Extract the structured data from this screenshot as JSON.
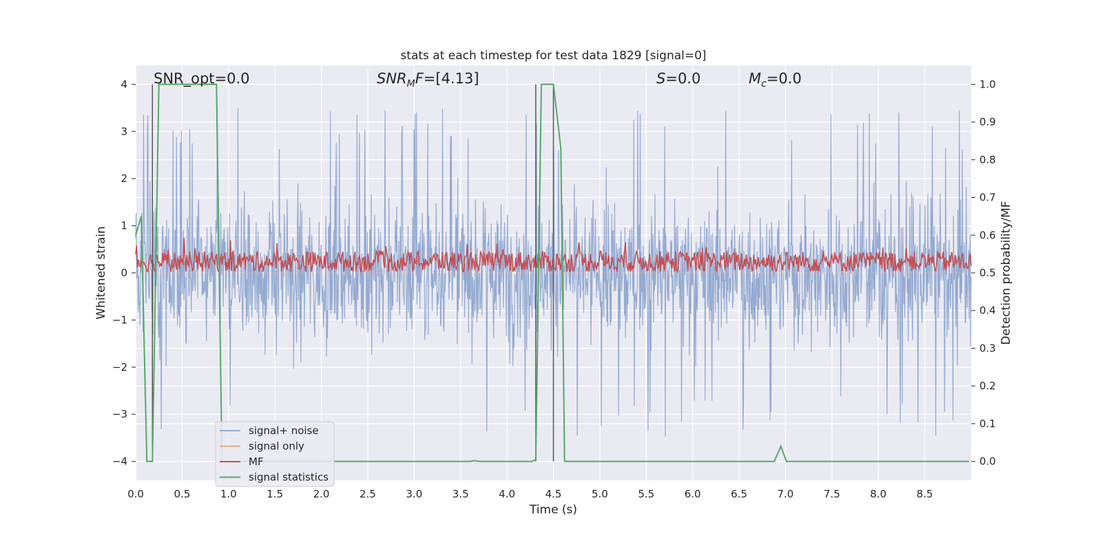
{
  "chart_data": {
    "type": "line",
    "title": "stats at each timestep for test data 1829 [signal=0]",
    "xlabel": "Time (s)",
    "ylabel_left": "Whitened strain",
    "ylabel_right": "Detection probability/MF",
    "xlim": [
      0.0,
      9.0
    ],
    "ylim_left": [
      -4.4,
      4.4
    ],
    "ylim_right": [
      -0.05,
      1.05
    ],
    "xticks": [
      "0.0",
      "0.5",
      "1.0",
      "1.5",
      "2.0",
      "2.5",
      "3.0",
      "3.5",
      "4.0",
      "4.5",
      "5.0",
      "5.5",
      "6.0",
      "6.5",
      "7.0",
      "7.5",
      "8.0",
      "8.5"
    ],
    "yticks_left": [
      "4",
      "3",
      "2",
      "1",
      "0",
      "−1",
      "−2",
      "−3",
      "−4"
    ],
    "yticks_right": [
      "1.0",
      "0.9",
      "0.8",
      "0.7",
      "0.6",
      "0.5",
      "0.4",
      "0.3",
      "0.2",
      "0.1",
      "0.0"
    ],
    "grid": true,
    "legend_position": "lower-left",
    "annotations": {
      "snr_opt": "SNR_opt=0.0",
      "snr_mf_prefix": "SNR",
      "snr_mf_sub": "M",
      "snr_mf_suffix": "F=[4.13]",
      "s_label": "S",
      "s_value": "=0.0",
      "mc_label": "M",
      "mc_sub": "c",
      "mc_value": "=0.0"
    },
    "vertical_markers_s": [
      0.18,
      4.31,
      4.5
    ],
    "series": [
      {
        "name": "signal+ noise",
        "color": "#8fa6cf",
        "axis": "left",
        "description_values": "whitened noise, approx. range -3.5 to 4.0",
        "amplitude_envelope": 2.0,
        "peak_max": 4.0,
        "peak_min": -4.0
      },
      {
        "name": "signal only",
        "color": "#e8a883",
        "axis": "left",
        "values_constant": 0.0
      },
      {
        "name": "MF",
        "color": "#c44e52",
        "axis": "right",
        "mean": 0.53,
        "range": [
          0.49,
          0.6
        ]
      },
      {
        "name": "signal statistics",
        "color": "#55a868",
        "axis": "right",
        "x": [
          0.0,
          0.06,
          0.12,
          0.18,
          0.25,
          0.87,
          0.93,
          1.0,
          2.0,
          3.0,
          3.6,
          3.65,
          3.7,
          4.0,
          4.27,
          4.31,
          4.37,
          4.5,
          4.58,
          4.62,
          4.65,
          5.0,
          6.0,
          6.88,
          6.95,
          7.01,
          8.0,
          8.98
        ],
        "y": [
          0.6,
          0.65,
          0.0,
          0.0,
          1.0,
          1.0,
          0.0,
          0.0,
          0.0,
          0.0,
          0.0,
          0.002,
          0.0,
          0.0,
          0.0,
          0.005,
          1.0,
          1.0,
          0.83,
          0.0,
          0.0,
          0.0,
          0.0,
          0.0,
          0.04,
          0.0,
          0.0,
          0.0
        ]
      }
    ]
  }
}
